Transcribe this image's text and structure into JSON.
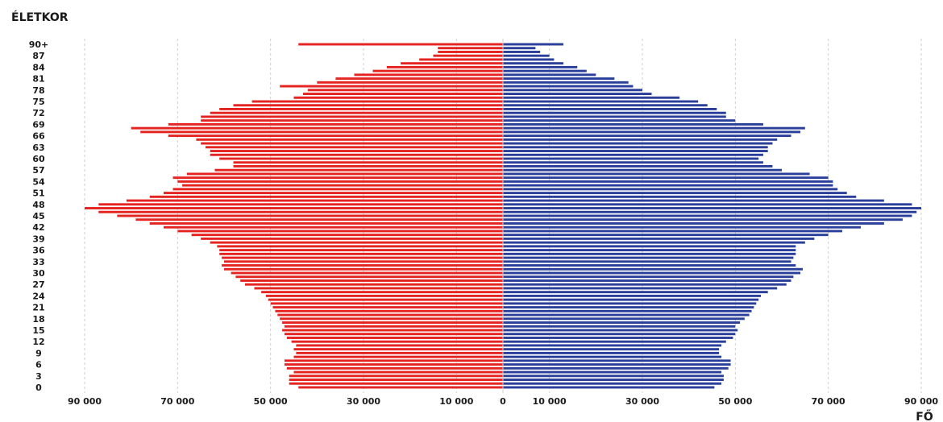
{
  "chart_data": {
    "type": "bar",
    "orientation": "horizontal",
    "ylabel": "ÉLETKOR",
    "xlabel": "FŐ",
    "ages": [
      0,
      1,
      2,
      3,
      4,
      5,
      6,
      7,
      8,
      9,
      10,
      11,
      12,
      13,
      14,
      15,
      16,
      17,
      18,
      19,
      20,
      21,
      22,
      23,
      24,
      25,
      26,
      27,
      28,
      29,
      30,
      31,
      32,
      33,
      34,
      35,
      36,
      37,
      38,
      39,
      40,
      41,
      42,
      43,
      44,
      45,
      46,
      47,
      48,
      49,
      50,
      51,
      52,
      53,
      54,
      55,
      56,
      57,
      58,
      59,
      60,
      61,
      62,
      63,
      64,
      65,
      66,
      67,
      68,
      69,
      70,
      71,
      72,
      73,
      74,
      75,
      76,
      77,
      78,
      79,
      80,
      81,
      82,
      83,
      84,
      85,
      86,
      87,
      88,
      89,
      90
    ],
    "age_tick_labels": [
      "0",
      "3",
      "6",
      "9",
      "12",
      "15",
      "18",
      "21",
      "24",
      "27",
      "30",
      "33",
      "36",
      "39",
      "42",
      "45",
      "48",
      "51",
      "54",
      "57",
      "60",
      "63",
      "66",
      "69",
      "72",
      "75",
      "78",
      "81",
      "84",
      "87",
      "90+"
    ],
    "x_tick_labels": [
      "90 000",
      "70 000",
      "50 000",
      "30 000",
      "10 000",
      "0",
      "10 000",
      "30 000",
      "50 000",
      "70 000",
      "90 000"
    ],
    "xlim": [
      -90000,
      90000
    ],
    "grid": true,
    "series": [
      {
        "side": "left",
        "color": "#e52421",
        "values": [
          44000,
          46000,
          46000,
          46000,
          45000,
          46500,
          47000,
          47000,
          45000,
          44500,
          45000,
          44500,
          45500,
          46500,
          47000,
          47500,
          47000,
          47500,
          48000,
          48500,
          49000,
          49500,
          50000,
          50500,
          51000,
          52000,
          53500,
          55500,
          56500,
          57500,
          58500,
          60000,
          60500,
          60000,
          60500,
          61000,
          61000,
          61500,
          63000,
          65000,
          67000,
          70000,
          73000,
          76000,
          79000,
          83000,
          87000,
          90000,
          87000,
          81000,
          76000,
          73000,
          71000,
          69000,
          70000,
          71000,
          68000,
          62000,
          58000,
          58000,
          61000,
          63000,
          63000,
          64000,
          65000,
          66000,
          72000,
          78000,
          80000,
          72000,
          65000,
          65000,
          63000,
          61000,
          58000,
          54000,
          45000,
          43000,
          42000,
          48000,
          40000,
          36000,
          32000,
          28000,
          25000,
          22000,
          18000,
          15000,
          14000,
          14000,
          44000
        ]
      },
      {
        "side": "right",
        "color": "#2a3f9a",
        "values": [
          45500,
          47000,
          47500,
          47500,
          47000,
          48500,
          49000,
          49000,
          47000,
          46500,
          46500,
          47000,
          48000,
          49500,
          50000,
          50500,
          50000,
          51000,
          52000,
          53000,
          53500,
          54000,
          54500,
          55000,
          55500,
          57000,
          59000,
          61000,
          62000,
          62500,
          64000,
          64500,
          63000,
          62000,
          62500,
          63000,
          63000,
          63000,
          65000,
          67000,
          70000,
          73000,
          77000,
          82000,
          86000,
          88000,
          89000,
          90000,
          88000,
          82000,
          76000,
          74000,
          72000,
          71000,
          71000,
          70000,
          66000,
          60000,
          58000,
          56000,
          55000,
          56000,
          57000,
          57000,
          58000,
          59000,
          62000,
          64000,
          65000,
          56000,
          50000,
          48000,
          48000,
          46000,
          44000,
          42000,
          38000,
          32000,
          30000,
          28000,
          27000,
          24000,
          20000,
          18000,
          16000,
          13000,
          11000,
          10000,
          8000,
          7000,
          13000
        ]
      }
    ]
  }
}
